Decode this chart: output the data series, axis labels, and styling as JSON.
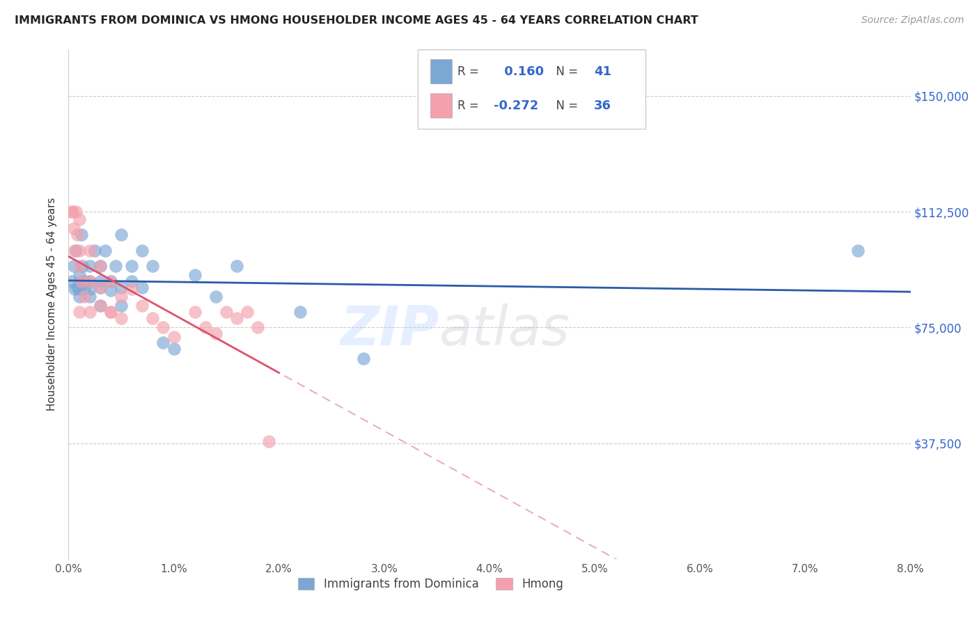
{
  "title": "IMMIGRANTS FROM DOMINICA VS HMONG HOUSEHOLDER INCOME AGES 45 - 64 YEARS CORRELATION CHART",
  "source": "Source: ZipAtlas.com",
  "ylabel": "Householder Income Ages 45 - 64 years",
  "xlabel_ticks": [
    "0.0%",
    "1.0%",
    "2.0%",
    "3.0%",
    "4.0%",
    "5.0%",
    "6.0%",
    "7.0%",
    "8.0%"
  ],
  "xlabel_vals": [
    0.0,
    0.01,
    0.02,
    0.03,
    0.04,
    0.05,
    0.06,
    0.07,
    0.08
  ],
  "ytick_labels": [
    "$37,500",
    "$75,000",
    "$112,500",
    "$150,000"
  ],
  "ytick_vals": [
    37500,
    75000,
    112500,
    150000
  ],
  "xmin": 0.0,
  "xmax": 0.08,
  "ymin": 0,
  "ymax": 165000,
  "blue_color": "#7BA7D4",
  "pink_color": "#F4A0AD",
  "blue_line_color": "#2B5BA8",
  "pink_line_color": "#E05070",
  "pink_dash_color": "#E8B0BB",
  "blue_scatter_x": [
    0.0003,
    0.0005,
    0.0006,
    0.0007,
    0.0008,
    0.001,
    0.001,
    0.001,
    0.0012,
    0.0013,
    0.0015,
    0.0015,
    0.002,
    0.002,
    0.002,
    0.002,
    0.0025,
    0.003,
    0.003,
    0.003,
    0.003,
    0.0035,
    0.004,
    0.004,
    0.0045,
    0.005,
    0.005,
    0.005,
    0.006,
    0.006,
    0.007,
    0.007,
    0.008,
    0.009,
    0.01,
    0.012,
    0.014,
    0.016,
    0.022,
    0.028,
    0.075
  ],
  "blue_scatter_y": [
    90000,
    95000,
    87500,
    100000,
    88000,
    92000,
    85000,
    87500,
    105000,
    95000,
    90000,
    88000,
    90000,
    95000,
    85000,
    87500,
    100000,
    90000,
    88000,
    95000,
    82000,
    100000,
    90000,
    87000,
    95000,
    105000,
    88000,
    82000,
    95000,
    90000,
    100000,
    88000,
    95000,
    70000,
    68000,
    92000,
    85000,
    95000,
    80000,
    65000,
    100000
  ],
  "pink_scatter_x": [
    0.0003,
    0.0004,
    0.0005,
    0.0006,
    0.0007,
    0.0008,
    0.001,
    0.001,
    0.001,
    0.001,
    0.0012,
    0.0015,
    0.002,
    0.002,
    0.002,
    0.003,
    0.003,
    0.003,
    0.004,
    0.004,
    0.005,
    0.005,
    0.006,
    0.007,
    0.008,
    0.009,
    0.01,
    0.012,
    0.013,
    0.014,
    0.015,
    0.016,
    0.017,
    0.018,
    0.019,
    0.004
  ],
  "pink_scatter_y": [
    112500,
    112500,
    107000,
    100000,
    112500,
    105000,
    110000,
    100000,
    95000,
    80000,
    90000,
    85000,
    100000,
    90000,
    80000,
    95000,
    88000,
    82000,
    90000,
    80000,
    85000,
    78000,
    87500,
    82000,
    78000,
    75000,
    72000,
    80000,
    75000,
    73000,
    80000,
    78000,
    80000,
    75000,
    38000,
    80000
  ],
  "blue_R": 0.16,
  "blue_N": 41,
  "pink_R": -0.272,
  "pink_N": 36,
  "legend_bottom_label1": "Immigrants from Dominica",
  "legend_bottom_label2": "Hmong"
}
